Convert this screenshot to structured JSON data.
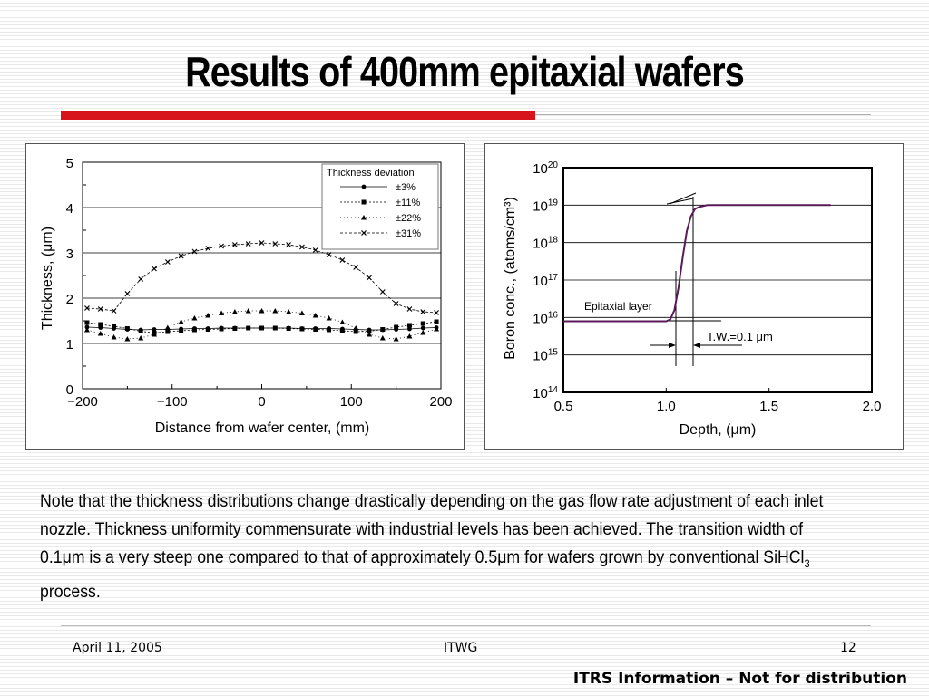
{
  "slide": {
    "title": "Results of 400mm epitaxial wafers",
    "note_part1": "Note that the thickness distributions change drastically depending on the gas flow rate adjustment of each inlet nozzle. Thickness uniformity commensurate with industrial levels has been achieved. The transition width of 0.1",
    "mu": "μ",
    "note_part2": "m is a very steep one compared to that of approximately 0.5",
    "note_part3": "m for wafers grown by conventional SiHCl",
    "note_sub": "3",
    "note_part4": " process.",
    "footer_date": "April  11, 2005",
    "footer_center": "ITWG",
    "footer_page": "12",
    "bottom_note": "ITRS Information – Not for distribution",
    "colors": {
      "accent_red": "#d7141b",
      "boron_curve": "#5a1a5a"
    }
  },
  "chart_data": [
    {
      "type": "line",
      "xlabel": "Distance from wafer center, (mm)",
      "ylabel": "Thickness, (μm)",
      "xlim": [
        -200,
        200
      ],
      "ylim": [
        0,
        5
      ],
      "xticks": [
        -200,
        -100,
        0,
        100,
        200
      ],
      "xtick_labels": [
        "−200",
        "−100",
        "0",
        "100",
        "200"
      ],
      "yticks": [
        0,
        1,
        2,
        3,
        4,
        5
      ],
      "grid": true,
      "legend_title": "Thickness deviation",
      "legend_position": "top-right",
      "x": [
        -195,
        -180,
        -165,
        -150,
        -135,
        -120,
        -105,
        -90,
        -75,
        -60,
        -45,
        -30,
        -15,
        0,
        15,
        30,
        45,
        60,
        75,
        90,
        105,
        120,
        135,
        150,
        165,
        180,
        195
      ],
      "series": [
        {
          "name": "±3%",
          "marker": "circle",
          "values": [
            1.36,
            1.35,
            1.33,
            1.31,
            1.3,
            1.31,
            1.31,
            1.32,
            1.33,
            1.33,
            1.34,
            1.34,
            1.34,
            1.34,
            1.34,
            1.34,
            1.33,
            1.33,
            1.33,
            1.32,
            1.31,
            1.3,
            1.3,
            1.31,
            1.32,
            1.34,
            1.35
          ]
        },
        {
          "name": "±11%",
          "marker": "square",
          "values": [
            1.46,
            1.42,
            1.38,
            1.33,
            1.27,
            1.23,
            1.26,
            1.28,
            1.3,
            1.31,
            1.32,
            1.33,
            1.34,
            1.34,
            1.34,
            1.33,
            1.32,
            1.31,
            1.3,
            1.28,
            1.26,
            1.27,
            1.31,
            1.36,
            1.4,
            1.44,
            1.48
          ]
        },
        {
          "name": "±22%",
          "marker": "triangle",
          "values": [
            1.3,
            1.22,
            1.14,
            1.1,
            1.12,
            1.2,
            1.35,
            1.48,
            1.56,
            1.62,
            1.67,
            1.7,
            1.72,
            1.72,
            1.72,
            1.7,
            1.67,
            1.62,
            1.56,
            1.47,
            1.34,
            1.2,
            1.12,
            1.1,
            1.16,
            1.24,
            1.32
          ]
        },
        {
          "name": "±31%",
          "marker": "x",
          "values": [
            1.78,
            1.76,
            1.72,
            2.1,
            2.42,
            2.65,
            2.8,
            2.93,
            3.03,
            3.1,
            3.15,
            3.18,
            3.2,
            3.22,
            3.2,
            3.18,
            3.13,
            3.06,
            2.96,
            2.84,
            2.68,
            2.45,
            2.14,
            1.88,
            1.76,
            1.7,
            1.68
          ]
        }
      ]
    },
    {
      "type": "line",
      "xlabel": "Depth, (μm)",
      "ylabel": "Boron conc., (atoms/cm³)",
      "xlim": [
        0.5,
        2.0
      ],
      "ylim": [
        14,
        20
      ],
      "y_scale": "log10",
      "xticks": [
        0.5,
        1.0,
        1.5,
        2.0
      ],
      "xtick_labels": [
        "0.5",
        "1.0",
        "1.5",
        "2.0"
      ],
      "ytick_labels": [
        {
          "base": "10",
          "exp": "20"
        },
        {
          "base": "10",
          "exp": "19"
        },
        {
          "base": "10",
          "exp": "18"
        },
        {
          "base": "10",
          "exp": "17"
        },
        {
          "base": "10",
          "exp": "16"
        },
        {
          "base": "10",
          "exp": "15"
        },
        {
          "base": "10",
          "exp": "14"
        }
      ],
      "grid": true,
      "series": [
        {
          "x": [
            0.5,
            0.6,
            0.7,
            0.8,
            0.9,
            1.0,
            1.02,
            1.04,
            1.06,
            1.08,
            1.1,
            1.12,
            1.14,
            1.16,
            1.2,
            1.25,
            1.3,
            1.4,
            1.6,
            1.8
          ],
          "y": [
            15.9,
            15.9,
            15.9,
            15.9,
            15.9,
            15.9,
            15.95,
            16.2,
            16.8,
            17.6,
            18.3,
            18.7,
            18.9,
            18.95,
            19.0,
            19.0,
            19.0,
            19.0,
            19.0,
            19.0
          ]
        }
      ],
      "annotations": {
        "layer_label": "Epitaxial layer",
        "transition_width": "T.W.=0.1 μm"
      }
    }
  ]
}
